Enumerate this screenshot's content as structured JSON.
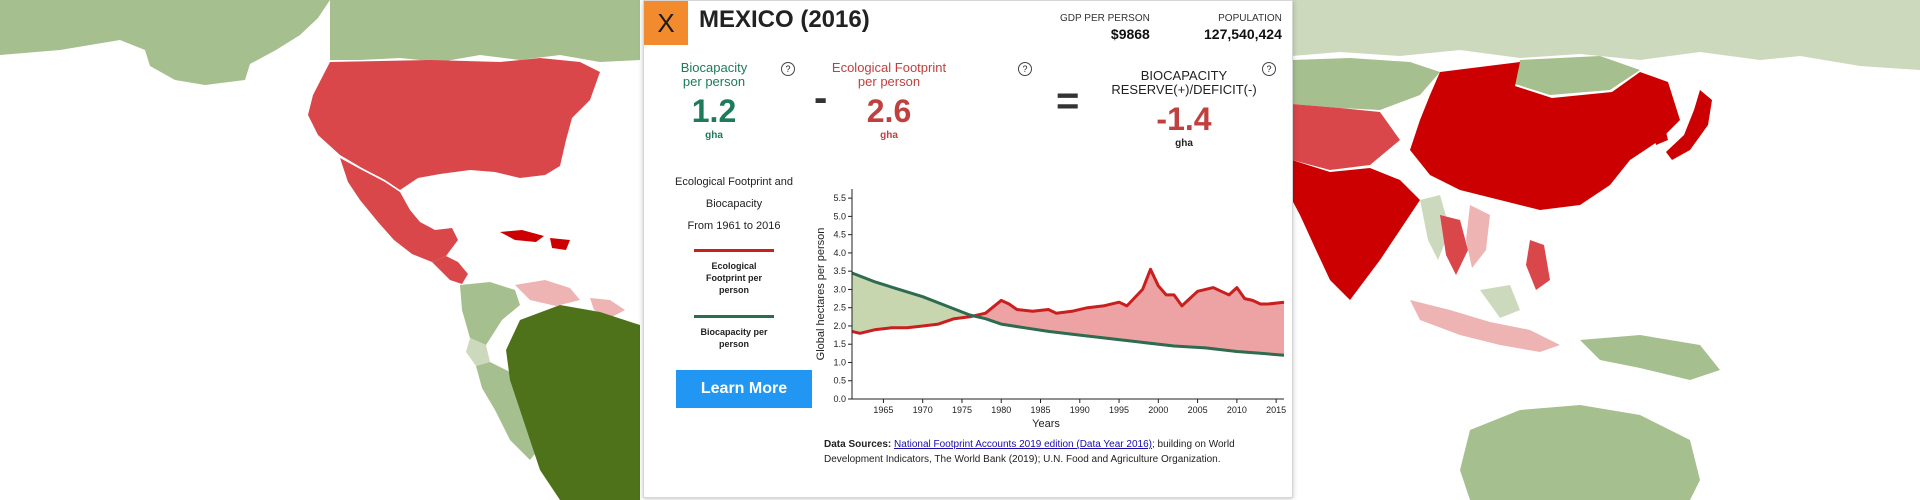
{
  "colors": {
    "map_deep_red": "#cc0000",
    "map_red": "#d9474b",
    "map_pink": "#eeb3b3",
    "map_light_green": "#a6bf8e",
    "map_pale_green": "#ccd9bd",
    "map_dark_green": "#4d7219",
    "biocapacity_green": "#1e7a5c",
    "footprint_red": "#c04040",
    "close_orange": "#f28a2e",
    "button_blue": "#2196f3"
  },
  "panel": {
    "close_label": "X",
    "title": "MEXICO (2016)",
    "gdp": {
      "label": "GDP PER PERSON",
      "value": "$9868"
    },
    "population": {
      "label": "POPULATION",
      "value": "127,540,424"
    },
    "info_icon": "?",
    "biocapacity": {
      "label_line1": "Biocapacity",
      "label_line2": "per person",
      "value": "1.2",
      "unit": "gha"
    },
    "minus": "-",
    "footprint": {
      "label_line1": "Ecological Footprint",
      "label_line2": "per person",
      "value": "2.6",
      "unit": "gha"
    },
    "equals": "=",
    "reserve": {
      "label_line1": "BIOCAPACITY",
      "label_line2": "RESERVE(+)/DEFICIT(-)",
      "value": "-1.4",
      "unit": "gha"
    },
    "chart_desc": {
      "line1": "Ecological Footprint and",
      "line2": "Biocapacity",
      "line3": "From 1961 to 2016"
    },
    "legend": {
      "footprint": {
        "line1": "Ecological",
        "line2": "Footprint per",
        "line3": "person"
      },
      "biocapacity": {
        "line1": "Biocapacity per",
        "line2": "person"
      }
    },
    "learn_more": "Learn More",
    "sources": {
      "label": "Data Sources:",
      "link_text": "National Footprint Accounts 2019 edition (Data Year 2016)",
      "rest": "; building on World Development Indicators, The World Bank (2019); U.N. Food and Agriculture Organization."
    }
  },
  "chart_data": {
    "type": "area",
    "xlabel": "Years",
    "ylabel": "Global hectares per person",
    "xlim": [
      1961,
      2016
    ],
    "ylim": [
      0,
      5.75
    ],
    "x_ticks": [
      1965,
      1970,
      1975,
      1980,
      1985,
      1990,
      1995,
      2000,
      2005,
      2010,
      2015
    ],
    "y_ticks": [
      0.0,
      0.5,
      1.0,
      1.5,
      2.0,
      2.5,
      3.0,
      3.5,
      4.0,
      4.5,
      5.0,
      5.5
    ],
    "series": [
      {
        "name": "Ecological Footprint per person",
        "color": "#c91f1f",
        "points": [
          [
            1961,
            1.85
          ],
          [
            1962,
            1.8
          ],
          [
            1964,
            1.9
          ],
          [
            1966,
            1.95
          ],
          [
            1968,
            1.95
          ],
          [
            1970,
            2.0
          ],
          [
            1972,
            2.05
          ],
          [
            1974,
            2.2
          ],
          [
            1976,
            2.25
          ],
          [
            1978,
            2.35
          ],
          [
            1980,
            2.7
          ],
          [
            1981,
            2.6
          ],
          [
            1982,
            2.45
          ],
          [
            1984,
            2.4
          ],
          [
            1986,
            2.45
          ],
          [
            1987,
            2.35
          ],
          [
            1989,
            2.4
          ],
          [
            1991,
            2.5
          ],
          [
            1993,
            2.55
          ],
          [
            1995,
            2.65
          ],
          [
            1996,
            2.55
          ],
          [
            1998,
            3.0
          ],
          [
            1999,
            3.55
          ],
          [
            2000,
            3.1
          ],
          [
            2001,
            2.85
          ],
          [
            2002,
            2.85
          ],
          [
            2003,
            2.55
          ],
          [
            2004,
            2.75
          ],
          [
            2005,
            2.95
          ],
          [
            2006,
            3.0
          ],
          [
            2007,
            3.05
          ],
          [
            2008,
            2.95
          ],
          [
            2009,
            2.85
          ],
          [
            2010,
            3.05
          ],
          [
            2011,
            2.75
          ],
          [
            2012,
            2.7
          ],
          [
            2013,
            2.6
          ],
          [
            2014,
            2.6
          ],
          [
            2016,
            2.65
          ]
        ]
      },
      {
        "name": "Biocapacity per person",
        "color": "#2e6b4f",
        "points": [
          [
            1961,
            3.45
          ],
          [
            1964,
            3.2
          ],
          [
            1967,
            3.0
          ],
          [
            1970,
            2.8
          ],
          [
            1973,
            2.55
          ],
          [
            1976,
            2.3
          ],
          [
            1978,
            2.2
          ],
          [
            1980,
            2.05
          ],
          [
            1983,
            1.95
          ],
          [
            1986,
            1.85
          ],
          [
            1990,
            1.75
          ],
          [
            1994,
            1.65
          ],
          [
            1998,
            1.55
          ],
          [
            2002,
            1.45
          ],
          [
            2006,
            1.4
          ],
          [
            2010,
            1.3
          ],
          [
            2013,
            1.25
          ],
          [
            2016,
            1.2
          ]
        ]
      }
    ]
  }
}
